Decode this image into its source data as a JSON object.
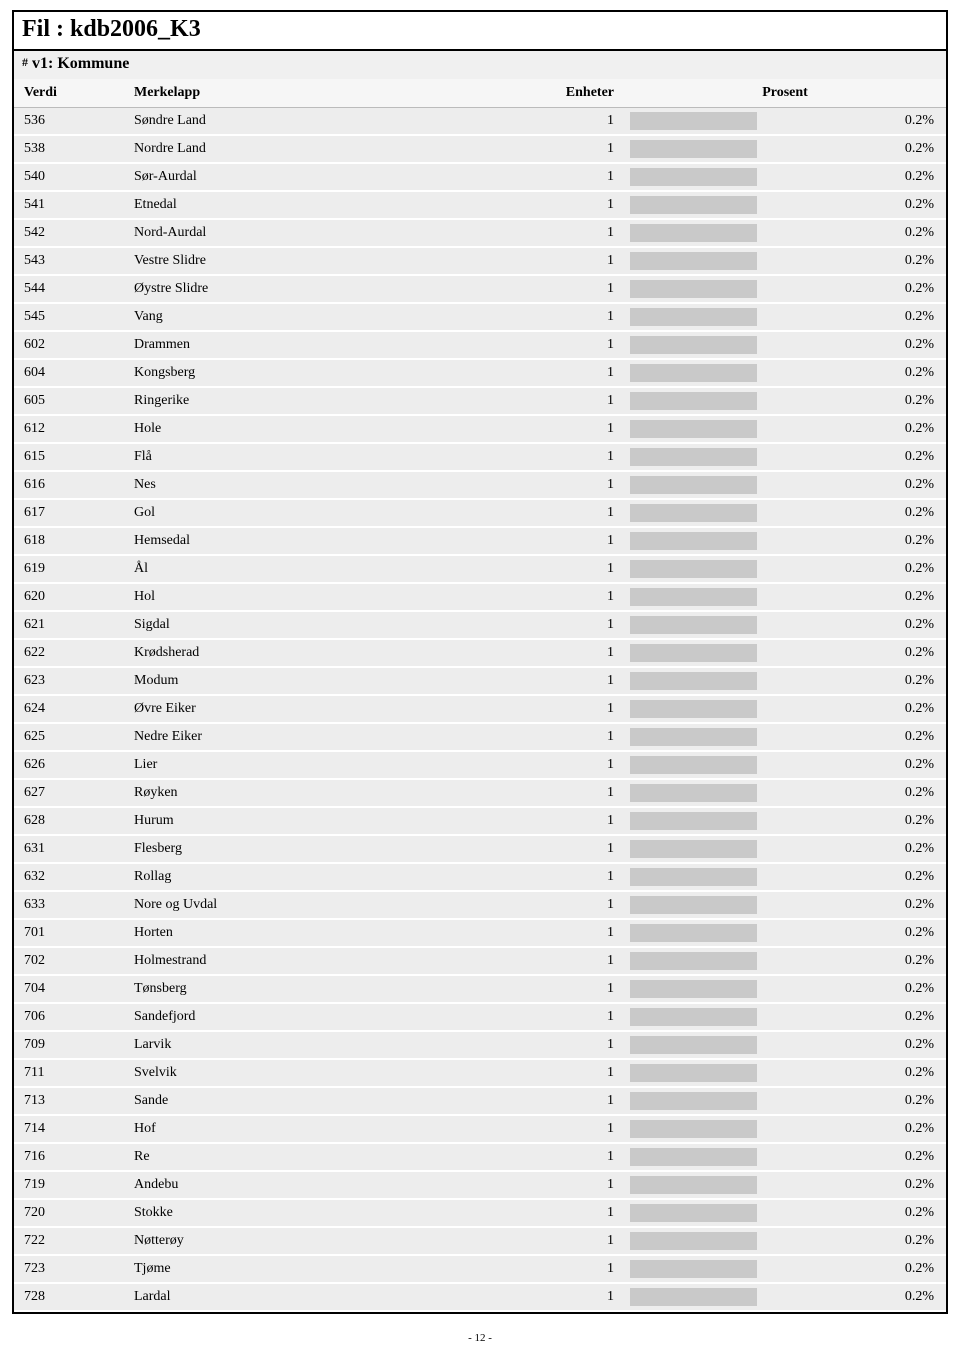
{
  "file_title_prefix": "Fil : ",
  "file_title": "kdb2006_K3",
  "sub_title_hash": "#",
  "sub_title": " v1: Kommune",
  "columns": {
    "verdi": "Verdi",
    "merkelapp": "Merkelapp",
    "enheter": "Enheter",
    "prosent": "Prosent"
  },
  "bar_fill_percent": 85,
  "bar_color": "#c9c9c9",
  "row_bg": "#ededed",
  "rows": [
    {
      "verdi": "536",
      "label": "Søndre Land",
      "enh": "1",
      "pct": "0.2%"
    },
    {
      "verdi": "538",
      "label": "Nordre Land",
      "enh": "1",
      "pct": "0.2%"
    },
    {
      "verdi": "540",
      "label": "Sør-Aurdal",
      "enh": "1",
      "pct": "0.2%"
    },
    {
      "verdi": "541",
      "label": "Etnedal",
      "enh": "1",
      "pct": "0.2%"
    },
    {
      "verdi": "542",
      "label": "Nord-Aurdal",
      "enh": "1",
      "pct": "0.2%"
    },
    {
      "verdi": "543",
      "label": "Vestre Slidre",
      "enh": "1",
      "pct": "0.2%"
    },
    {
      "verdi": "544",
      "label": "Øystre Slidre",
      "enh": "1",
      "pct": "0.2%"
    },
    {
      "verdi": "545",
      "label": "Vang",
      "enh": "1",
      "pct": "0.2%"
    },
    {
      "verdi": "602",
      "label": "Drammen",
      "enh": "1",
      "pct": "0.2%"
    },
    {
      "verdi": "604",
      "label": "Kongsberg",
      "enh": "1",
      "pct": "0.2%"
    },
    {
      "verdi": "605",
      "label": "Ringerike",
      "enh": "1",
      "pct": "0.2%"
    },
    {
      "verdi": "612",
      "label": "Hole",
      "enh": "1",
      "pct": "0.2%"
    },
    {
      "verdi": "615",
      "label": "Flå",
      "enh": "1",
      "pct": "0.2%"
    },
    {
      "verdi": "616",
      "label": "Nes",
      "enh": "1",
      "pct": "0.2%"
    },
    {
      "verdi": "617",
      "label": "Gol",
      "enh": "1",
      "pct": "0.2%"
    },
    {
      "verdi": "618",
      "label": "Hemsedal",
      "enh": "1",
      "pct": "0.2%"
    },
    {
      "verdi": "619",
      "label": "Ål",
      "enh": "1",
      "pct": "0.2%"
    },
    {
      "verdi": "620",
      "label": "Hol",
      "enh": "1",
      "pct": "0.2%"
    },
    {
      "verdi": "621",
      "label": "Sigdal",
      "enh": "1",
      "pct": "0.2%"
    },
    {
      "verdi": "622",
      "label": "Krødsherad",
      "enh": "1",
      "pct": "0.2%"
    },
    {
      "verdi": "623",
      "label": "Modum",
      "enh": "1",
      "pct": "0.2%"
    },
    {
      "verdi": "624",
      "label": "Øvre Eiker",
      "enh": "1",
      "pct": "0.2%"
    },
    {
      "verdi": "625",
      "label": "Nedre Eiker",
      "enh": "1",
      "pct": "0.2%"
    },
    {
      "verdi": "626",
      "label": "Lier",
      "enh": "1",
      "pct": "0.2%"
    },
    {
      "verdi": "627",
      "label": "Røyken",
      "enh": "1",
      "pct": "0.2%"
    },
    {
      "verdi": "628",
      "label": "Hurum",
      "enh": "1",
      "pct": "0.2%"
    },
    {
      "verdi": "631",
      "label": "Flesberg",
      "enh": "1",
      "pct": "0.2%"
    },
    {
      "verdi": "632",
      "label": "Rollag",
      "enh": "1",
      "pct": "0.2%"
    },
    {
      "verdi": "633",
      "label": "Nore og Uvdal",
      "enh": "1",
      "pct": "0.2%"
    },
    {
      "verdi": "701",
      "label": "Horten",
      "enh": "1",
      "pct": "0.2%"
    },
    {
      "verdi": "702",
      "label": "Holmestrand",
      "enh": "1",
      "pct": "0.2%"
    },
    {
      "verdi": "704",
      "label": "Tønsberg",
      "enh": "1",
      "pct": "0.2%"
    },
    {
      "verdi": "706",
      "label": "Sandefjord",
      "enh": "1",
      "pct": "0.2%"
    },
    {
      "verdi": "709",
      "label": "Larvik",
      "enh": "1",
      "pct": "0.2%"
    },
    {
      "verdi": "711",
      "label": "Svelvik",
      "enh": "1",
      "pct": "0.2%"
    },
    {
      "verdi": "713",
      "label": "Sande",
      "enh": "1",
      "pct": "0.2%"
    },
    {
      "verdi": "714",
      "label": "Hof",
      "enh": "1",
      "pct": "0.2%"
    },
    {
      "verdi": "716",
      "label": "Re",
      "enh": "1",
      "pct": "0.2%"
    },
    {
      "verdi": "719",
      "label": "Andebu",
      "enh": "1",
      "pct": "0.2%"
    },
    {
      "verdi": "720",
      "label": "Stokke",
      "enh": "1",
      "pct": "0.2%"
    },
    {
      "verdi": "722",
      "label": "Nøtterøy",
      "enh": "1",
      "pct": "0.2%"
    },
    {
      "verdi": "723",
      "label": "Tjøme",
      "enh": "1",
      "pct": "0.2%"
    },
    {
      "verdi": "728",
      "label": "Lardal",
      "enh": "1",
      "pct": "0.2%"
    }
  ],
  "page_number": "- 12 -"
}
